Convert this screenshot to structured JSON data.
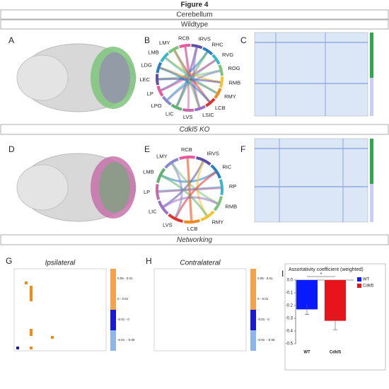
{
  "figure_title": "Figure 4",
  "sections": [
    "Cerebellum",
    "Wildtype",
    "Cdkl5 KO",
    "Networking"
  ],
  "letters": [
    "A",
    "B",
    "C",
    "D",
    "E",
    "F",
    "G",
    "H",
    "I"
  ],
  "chord_b": [
    "RCB",
    "IRVS",
    "RHC",
    "RVG",
    "ROG",
    "RMB",
    "RMY",
    "LCB",
    "LSIC",
    "LVS",
    "LIC",
    "LPO",
    "LP",
    "LEC",
    "LDG",
    "LMB",
    "LMY"
  ],
  "chord_e": [
    "RCB",
    "IRVS",
    "RIC",
    "RP",
    "RMB",
    "RMY",
    "LCB",
    "LVS",
    "LIC",
    "LP",
    "LMB",
    "LMY"
  ],
  "heatmap_titles": [
    "Ipsilateral",
    "Contralateral"
  ],
  "colorbar_labels": [
    "0.05 - 0.01",
    "0 - 0.01",
    "-0.01 - 0",
    "-0.01 - -0.05"
  ],
  "chart_data": {
    "type": "bar",
    "title": "Assortativity coefficient (weighted)",
    "categories": [
      "WT",
      "Cdkl5"
    ],
    "values": [
      -0.23,
      -0.32
    ],
    "errors": [
      0.04,
      0.07
    ],
    "colors": [
      "#0a1aff",
      "#e8141c"
    ],
    "ylim": [
      -0.5,
      0.0
    ],
    "yticks": [
      {
        "value": 0,
        "label": "0.0"
      },
      -0.1,
      -0.2,
      -0.3,
      -0.4,
      -0.5
    ],
    "legend": "top-right",
    "annotation": "*"
  }
}
